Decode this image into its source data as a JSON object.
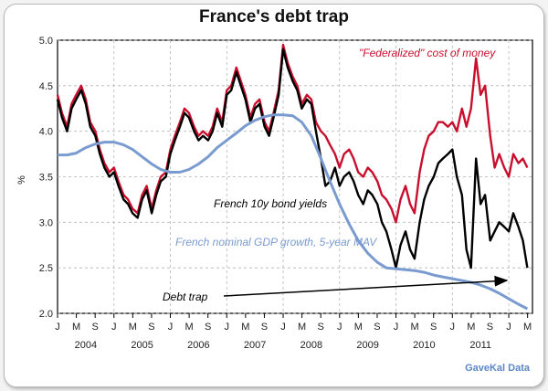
{
  "chart_data": {
    "type": "line",
    "title": "France's debt trap",
    "ylabel": "%",
    "xlabel": "",
    "ylim": [
      2.0,
      5.0
    ],
    "yticks": [
      2.0,
      2.5,
      3.0,
      3.5,
      4.0,
      4.5,
      5.0
    ],
    "ytick_labels": [
      "2.0",
      "2.5",
      "3.0",
      "3.5",
      "4.0",
      "4.5",
      "5.0"
    ],
    "xlim": [
      2004.0,
      2012.42
    ],
    "month_ticks": [
      "J",
      "M",
      "S",
      "J",
      "M",
      "S",
      "J",
      "M",
      "S",
      "J",
      "M",
      "S",
      "J",
      "M",
      "S",
      "J",
      "M",
      "S",
      "J",
      "M",
      "S",
      "J",
      "M",
      "S",
      "J",
      "M"
    ],
    "year_labels": [
      "2004",
      "2005",
      "2006",
      "2007",
      "2008",
      "2009",
      "2010",
      "2011"
    ],
    "grid": true,
    "series": [
      {
        "name": "\"Federalized\" cost of money",
        "color": "#c8102e",
        "x": [
          2004.0,
          2004.08,
          2004.17,
          2004.25,
          2004.33,
          2004.42,
          2004.5,
          2004.58,
          2004.67,
          2004.75,
          2004.83,
          2004.92,
          2005.0,
          2005.08,
          2005.17,
          2005.25,
          2005.33,
          2005.42,
          2005.5,
          2005.58,
          2005.67,
          2005.75,
          2005.83,
          2005.92,
          2006.0,
          2006.08,
          2006.17,
          2006.25,
          2006.33,
          2006.42,
          2006.5,
          2006.58,
          2006.67,
          2006.75,
          2006.83,
          2006.92,
          2007.0,
          2007.08,
          2007.17,
          2007.25,
          2007.33,
          2007.42,
          2007.5,
          2007.58,
          2007.67,
          2007.75,
          2007.83,
          2007.92,
          2008.0,
          2008.08,
          2008.17,
          2008.25,
          2008.33,
          2008.42,
          2008.5,
          2008.58,
          2008.67,
          2008.75,
          2008.83,
          2008.92,
          2009.0,
          2009.08,
          2009.17,
          2009.25,
          2009.33,
          2009.42,
          2009.5,
          2009.58,
          2009.67,
          2009.75,
          2009.83,
          2009.92,
          2010.0,
          2010.08,
          2010.17,
          2010.25,
          2010.33,
          2010.42,
          2010.5,
          2010.58,
          2010.67,
          2010.75,
          2010.83,
          2010.92,
          2011.0,
          2011.08,
          2011.17,
          2011.25,
          2011.33,
          2011.42,
          2011.5,
          2011.58,
          2011.67,
          2011.75,
          2011.83,
          2011.92,
          2012.0,
          2012.08,
          2012.17,
          2012.25,
          2012.33
        ],
        "values": [
          4.4,
          4.2,
          4.05,
          4.3,
          4.4,
          4.5,
          4.35,
          4.1,
          4.0,
          3.8,
          3.65,
          3.55,
          3.6,
          3.45,
          3.3,
          3.25,
          3.15,
          3.1,
          3.3,
          3.4,
          3.15,
          3.35,
          3.5,
          3.55,
          3.8,
          3.95,
          4.1,
          4.25,
          4.2,
          4.05,
          3.95,
          4.0,
          3.95,
          4.05,
          4.25,
          4.1,
          4.45,
          4.5,
          4.7,
          4.55,
          4.4,
          4.15,
          4.3,
          4.35,
          4.1,
          4.0,
          4.2,
          4.45,
          4.95,
          4.75,
          4.6,
          4.5,
          4.3,
          4.4,
          4.35,
          4.1,
          4.0,
          3.95,
          3.85,
          3.75,
          3.6,
          3.75,
          3.8,
          3.7,
          3.55,
          3.5,
          3.6,
          3.55,
          3.45,
          3.3,
          3.25,
          3.15,
          3.0,
          3.25,
          3.4,
          3.2,
          3.1,
          3.55,
          3.8,
          3.95,
          4.0,
          4.1,
          4.1,
          4.05,
          4.1,
          4.0,
          4.25,
          4.05,
          4.25,
          4.8,
          4.4,
          4.5,
          3.95,
          3.6,
          3.75,
          3.6,
          3.5,
          3.75,
          3.65,
          3.7,
          3.6
        ]
      },
      {
        "name": "French 10y bond yields",
        "color": "#000000",
        "x": [
          2004.0,
          2004.08,
          2004.17,
          2004.25,
          2004.33,
          2004.42,
          2004.5,
          2004.58,
          2004.67,
          2004.75,
          2004.83,
          2004.92,
          2005.0,
          2005.08,
          2005.17,
          2005.25,
          2005.33,
          2005.42,
          2005.5,
          2005.58,
          2005.67,
          2005.75,
          2005.83,
          2005.92,
          2006.0,
          2006.08,
          2006.17,
          2006.25,
          2006.33,
          2006.42,
          2006.5,
          2006.58,
          2006.67,
          2006.75,
          2006.83,
          2006.92,
          2007.0,
          2007.08,
          2007.17,
          2007.25,
          2007.33,
          2007.42,
          2007.5,
          2007.58,
          2007.67,
          2007.75,
          2007.83,
          2007.92,
          2008.0,
          2008.08,
          2008.17,
          2008.25,
          2008.33,
          2008.42,
          2008.5,
          2008.58,
          2008.67,
          2008.75,
          2008.83,
          2008.92,
          2009.0,
          2009.08,
          2009.17,
          2009.25,
          2009.33,
          2009.42,
          2009.5,
          2009.58,
          2009.67,
          2009.75,
          2009.83,
          2009.92,
          2010.0,
          2010.08,
          2010.17,
          2010.25,
          2010.33,
          2010.42,
          2010.5,
          2010.58,
          2010.67,
          2010.75,
          2010.83,
          2010.92,
          2011.0,
          2011.08,
          2011.17,
          2011.25,
          2011.33,
          2011.42,
          2011.5,
          2011.58,
          2011.67,
          2011.75,
          2011.83,
          2011.92,
          2012.0,
          2012.08,
          2012.17,
          2012.25,
          2012.33
        ],
        "values": [
          4.35,
          4.15,
          4.0,
          4.25,
          4.35,
          4.45,
          4.3,
          4.05,
          3.95,
          3.75,
          3.6,
          3.5,
          3.55,
          3.4,
          3.25,
          3.2,
          3.1,
          3.05,
          3.25,
          3.35,
          3.1,
          3.3,
          3.45,
          3.5,
          3.75,
          3.9,
          4.05,
          4.2,
          4.15,
          4.0,
          3.9,
          3.95,
          3.9,
          4.0,
          4.2,
          4.05,
          4.4,
          4.45,
          4.65,
          4.5,
          4.35,
          4.1,
          4.25,
          4.3,
          4.05,
          3.95,
          4.15,
          4.4,
          4.9,
          4.7,
          4.55,
          4.45,
          4.25,
          4.35,
          4.3,
          4.0,
          3.7,
          3.4,
          3.45,
          3.6,
          3.4,
          3.5,
          3.55,
          3.45,
          3.3,
          3.2,
          3.35,
          3.3,
          3.2,
          3.0,
          2.9,
          2.7,
          2.5,
          2.75,
          2.9,
          2.7,
          2.6,
          3.0,
          3.25,
          3.4,
          3.5,
          3.65,
          3.7,
          3.75,
          3.8,
          3.5,
          3.3,
          2.7,
          2.5,
          3.7,
          3.2,
          3.3,
          2.8,
          2.9,
          3.0,
          2.95,
          2.9,
          3.1,
          2.95,
          2.8,
          2.5
        ]
      },
      {
        "name": "French nominal GDP growth, 5-year MAV",
        "color": "#7a9bd0",
        "x": [
          2004.0,
          2004.17,
          2004.33,
          2004.5,
          2004.67,
          2004.83,
          2005.0,
          2005.17,
          2005.33,
          2005.5,
          2005.67,
          2005.83,
          2006.0,
          2006.17,
          2006.33,
          2006.5,
          2006.67,
          2006.83,
          2007.0,
          2007.17,
          2007.33,
          2007.5,
          2007.67,
          2007.83,
          2008.0,
          2008.17,
          2008.33,
          2008.5,
          2008.67,
          2008.83,
          2009.0,
          2009.17,
          2009.33,
          2009.5,
          2009.67,
          2009.83,
          2010.0,
          2010.17,
          2010.33,
          2010.5,
          2010.67,
          2010.83,
          2011.0,
          2011.17,
          2011.33,
          2011.5,
          2011.67,
          2011.83,
          2012.0,
          2012.17,
          2012.33
        ],
        "values": [
          3.74,
          3.74,
          3.76,
          3.82,
          3.86,
          3.88,
          3.88,
          3.85,
          3.8,
          3.72,
          3.64,
          3.58,
          3.55,
          3.55,
          3.58,
          3.64,
          3.72,
          3.82,
          3.9,
          3.98,
          4.06,
          4.12,
          4.16,
          4.18,
          4.18,
          4.17,
          4.1,
          3.95,
          3.7,
          3.45,
          3.2,
          2.98,
          2.8,
          2.66,
          2.56,
          2.5,
          2.49,
          2.48,
          2.47,
          2.45,
          2.42,
          2.4,
          2.38,
          2.36,
          2.34,
          2.31,
          2.27,
          2.22,
          2.16,
          2.1,
          2.05
        ]
      }
    ],
    "annotations": [
      {
        "text": "\"Federalized\" cost of money",
        "color": "#c8102e"
      },
      {
        "text": "French 10y bond yields",
        "color": "#000000"
      },
      {
        "text": "French nominal GDP growth, 5-year MAV",
        "color": "#7a9bd0"
      },
      {
        "text": "Debt trap",
        "color": "#000000"
      }
    ],
    "source": "GaveKal Data"
  }
}
